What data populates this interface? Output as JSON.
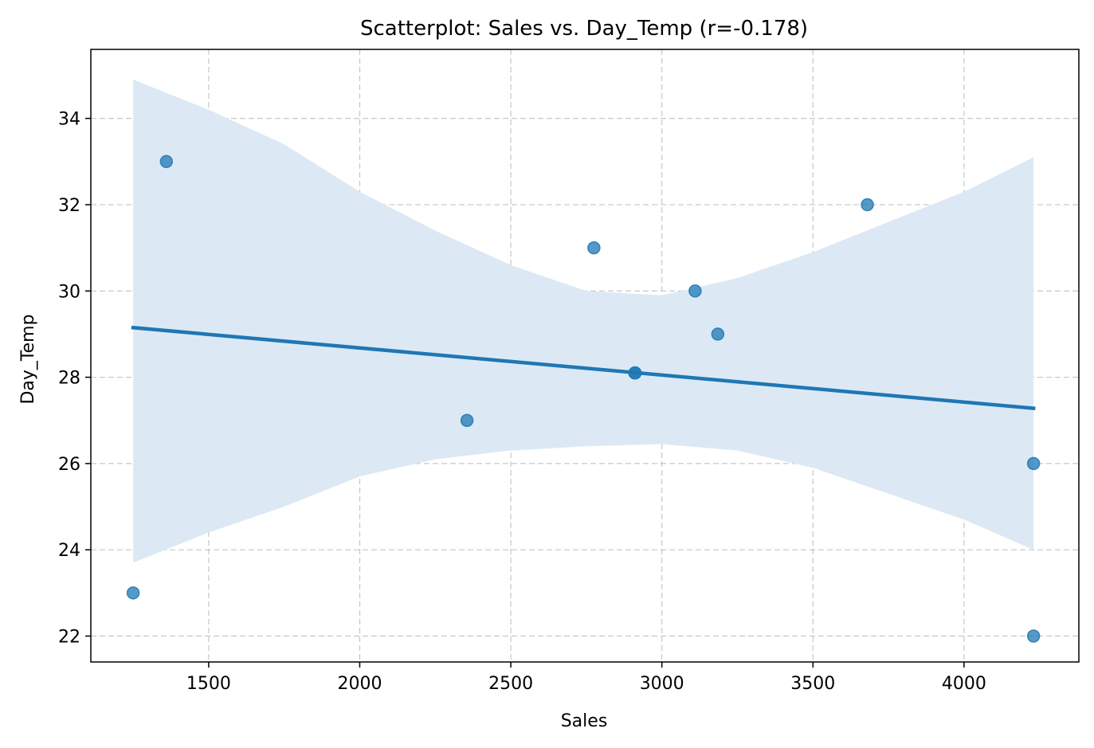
{
  "chart_data": {
    "type": "scatter",
    "title": "Scatterplot: Sales vs. Day_Temp (r=-0.178)",
    "xlabel": "Sales",
    "ylabel": "Day_Temp",
    "xlim": [
      1110,
      4380
    ],
    "ylim": [
      21.4,
      35.6
    ],
    "xticks": [
      1500,
      2000,
      2500,
      3000,
      3500,
      4000
    ],
    "yticks": [
      22,
      24,
      26,
      28,
      30,
      32,
      34
    ],
    "grid": true,
    "points": [
      {
        "x": 1250,
        "y": 23
      },
      {
        "x": 1360,
        "y": 33
      },
      {
        "x": 2355,
        "y": 27
      },
      {
        "x": 2775,
        "y": 31
      },
      {
        "x": 2910,
        "y": 28.1
      },
      {
        "x": 2912,
        "y": 28.1
      },
      {
        "x": 3110,
        "y": 30
      },
      {
        "x": 3185,
        "y": 29
      },
      {
        "x": 3680,
        "y": 32
      },
      {
        "x": 4230,
        "y": 26
      },
      {
        "x": 4230,
        "y": 22
      }
    ],
    "regression_line": {
      "x": [
        1250,
        4230
      ],
      "y": [
        29.15,
        27.28
      ]
    },
    "confidence_band": {
      "x": [
        1250,
        1500,
        1750,
        2000,
        2250,
        2500,
        2750,
        3000,
        3250,
        3500,
        3750,
        4000,
        4230
      ],
      "upper": [
        34.9,
        34.2,
        33.4,
        32.3,
        31.4,
        30.6,
        30.0,
        29.9,
        30.3,
        30.9,
        31.6,
        32.3,
        33.1
      ],
      "lower": [
        23.7,
        24.4,
        25.0,
        25.7,
        26.1,
        26.3,
        26.4,
        26.45,
        26.3,
        25.9,
        25.3,
        24.7,
        24.0
      ]
    },
    "colors": {
      "point": "#1f77b4",
      "line": "#1f77b4",
      "band": "#dce9f4"
    }
  }
}
